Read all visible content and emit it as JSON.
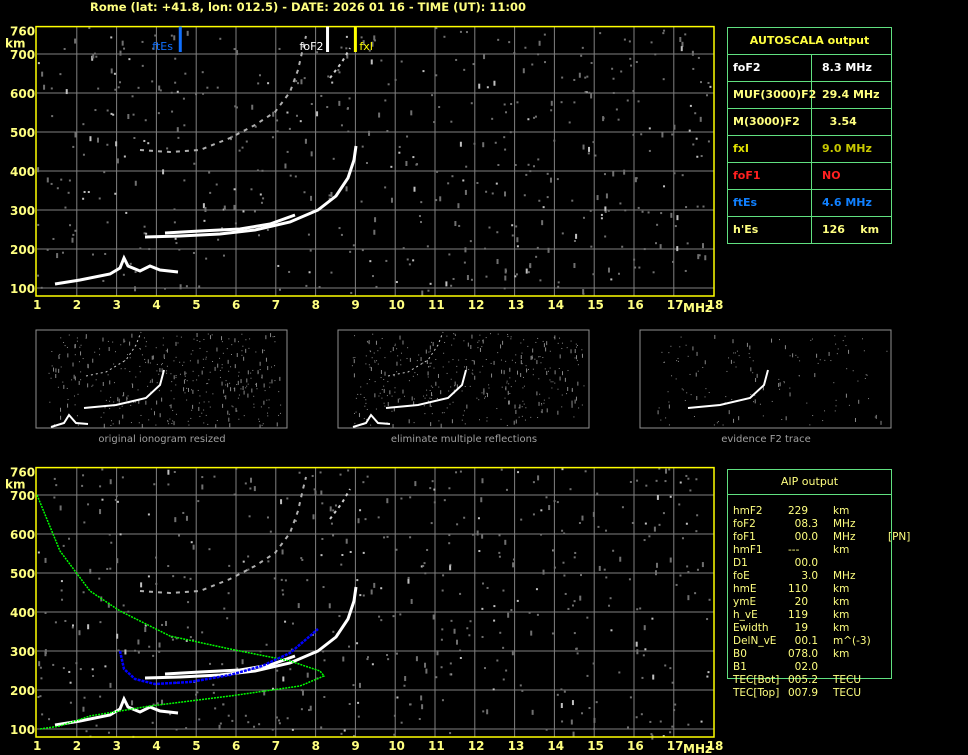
{
  "title": "Rome (lat: +41.8, lon: 012.5) - DATE: 2026 01 16 - TIME (UT): 11:00",
  "colors": {
    "axis": "#ffff00",
    "grid": "#808080",
    "ftEs": "#1070ff",
    "foF2": "#ffffff",
    "fxI": "#ffff00",
    "aip_profile": "#00ff00",
    "aip_trace": "#0000ff",
    "table_border": "#60e080"
  },
  "plot": {
    "x_unit": "MHz",
    "y_unit": "km",
    "x_ticks": [
      "1",
      "2",
      "3",
      "4",
      "5",
      "6",
      "7",
      "8",
      "9",
      "10",
      "11",
      "12",
      "13",
      "14",
      "15",
      "16",
      "17",
      "18"
    ],
    "y_ticks": [
      "100",
      "200",
      "300",
      "400",
      "500",
      "600",
      "700",
      "760"
    ],
    "markers": [
      {
        "label": "ftEs",
        "freq_mhz": 4.6,
        "color": "#1070ff"
      },
      {
        "label": "foF2",
        "freq_mhz": 8.3,
        "color": "#ffffff"
      },
      {
        "label": "fxI",
        "freq_mhz": 9.0,
        "color": "#ffff00"
      }
    ]
  },
  "autoscala": {
    "header": "AUTOSCALA output",
    "rows": [
      {
        "key": "foF2",
        "value": "8.3 MHz",
        "color": "#ffffff",
        "vcolor": "#ffffff"
      },
      {
        "key": "MUF(3000)F2",
        "value": "29.4 MHz",
        "color": "#ffff80",
        "vcolor": "#ffff80"
      },
      {
        "key": "M(3000)F2",
        "value": "  3.54",
        "color": "#ffff80",
        "vcolor": "#ffff80"
      },
      {
        "key": "fxI",
        "value": "9.0 MHz",
        "color": "#e0e000",
        "vcolor": "#c8c800"
      },
      {
        "key": "foF1",
        "value": "NO",
        "color": "#ff2020",
        "vcolor": "#ff2020"
      },
      {
        "key": "ftEs",
        "value": "4.6 MHz",
        "color": "#1080ff",
        "vcolor": "#1080ff"
      },
      {
        "key": "h'Es",
        "value": "126    km",
        "color": "#ffff80",
        "vcolor": "#ffff80"
      }
    ]
  },
  "thumbnails": [
    {
      "caption": "original ionogram resized"
    },
    {
      "caption": "eliminate multiple reflections"
    },
    {
      "caption": "evidence F2 trace"
    }
  ],
  "aip": {
    "header": "AIP output",
    "rows": [
      [
        "hmF2",
        "229",
        "km",
        ""
      ],
      [
        "foF2",
        "  08.3",
        "MHz",
        ""
      ],
      [
        "foF1",
        "  00.0",
        "MHz",
        "[PN]"
      ],
      [
        "hmF1",
        "---",
        "km",
        ""
      ],
      [
        "D1",
        "  00.0",
        "",
        ""
      ],
      [
        "foE",
        "    3.0",
        "MHz",
        ""
      ],
      [
        "hmE",
        "110",
        "km",
        ""
      ],
      [
        "ymE",
        "  20",
        "km",
        ""
      ],
      [
        "h_vE",
        "119",
        "km",
        ""
      ],
      [
        "Ewidth",
        "  19",
        "km",
        ""
      ],
      [
        "DelN_vE",
        "  00.1",
        "m^(-3)",
        ""
      ],
      [
        "B0",
        "078.0",
        "km",
        ""
      ],
      [
        "B1",
        "  02.0",
        "",
        ""
      ],
      [
        "TEC[Bot]",
        "005.2",
        "TECU",
        ""
      ],
      [
        "TEC[Top]",
        "007.9",
        "TECU",
        ""
      ]
    ]
  }
}
